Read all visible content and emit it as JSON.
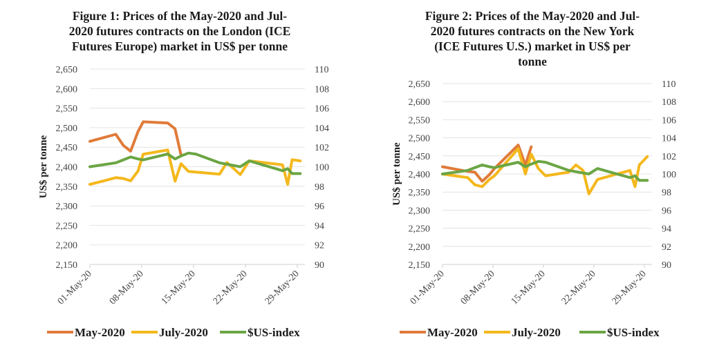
{
  "chart_data": [
    {
      "type": "line",
      "title": "Figure 1: Prices of the May-2020 and Jul-2020 futures contracts on the London (ICE Futures Europe) market in US$ per tonne",
      "title_lines": [
        "Figure 1: Prices of the May-2020 and Jul-",
        "2020 futures contracts on the London (ICE",
        "Futures Europe) market in US$ per tonne"
      ],
      "xlabel": "",
      "ylabel": "US$ per tonne",
      "y2label": "",
      "x_ticks": [
        "01-May-20",
        "08-May-20",
        "15-May-20",
        "22-May-20",
        "29-May-20"
      ],
      "x_tick_days": [
        0,
        7,
        14,
        21,
        28
      ],
      "x_range_days": [
        0,
        29
      ],
      "ylim": [
        2150,
        2650
      ],
      "y_ticks": [
        "2,150",
        "2,200",
        "2,250",
        "2,300",
        "2,350",
        "2,400",
        "2,450",
        "2,500",
        "2,550",
        "2,600",
        "2,650"
      ],
      "y2lim": [
        90,
        110
      ],
      "y2_ticks": [
        "90",
        "92",
        "94",
        "96",
        "98",
        "100",
        "102",
        "104",
        "106",
        "108",
        "110"
      ],
      "grid": true,
      "legend_position": "bottom",
      "series": [
        {
          "name": "May-2020",
          "axis": "left",
          "color": "#E07B39",
          "x": [
            0,
            3.5,
            4.5,
            5.5,
            6.5,
            7.2,
            10.5,
            11.5,
            12.3
          ],
          "values": [
            2465,
            2483,
            2455,
            2440,
            2490,
            2515,
            2512,
            2497,
            2430
          ]
        },
        {
          "name": "July-2020",
          "axis": "left",
          "color": "#F4B81C",
          "x": [
            0,
            1.7,
            3.5,
            4.5,
            5.5,
            6.5,
            7.2,
            10.5,
            11.5,
            12.3,
            13.3,
            17.5,
            18.5,
            20.3,
            21.5,
            26,
            26.7,
            27.3,
            28.4
          ],
          "values": [
            2355,
            2363,
            2372,
            2370,
            2364,
            2389,
            2432,
            2443,
            2363,
            2408,
            2388,
            2381,
            2411,
            2380,
            2415,
            2405,
            2355,
            2418,
            2415
          ]
        },
        {
          "name": "$US-index",
          "axis": "right",
          "color": "#6BA543",
          "x": [
            0,
            3.5,
            4.5,
            5.5,
            6.5,
            7.2,
            10.5,
            11.5,
            12.3,
            13.3,
            14.3,
            17.5,
            20.3,
            21.5,
            26,
            26.7,
            27.3,
            28.4
          ],
          "values": [
            100.0,
            100.4,
            100.7,
            101.0,
            100.8,
            100.7,
            101.3,
            100.8,
            101.1,
            101.4,
            101.3,
            100.4,
            100.0,
            100.6,
            99.6,
            99.8,
            99.3,
            99.3
          ]
        }
      ]
    },
    {
      "type": "line",
      "title": "Figure 2: Prices of the May-2020 and Jul-2020 futures contracts on the New York (ICE Futures U.S.) market in US$ per tonne",
      "title_lines": [
        "Figure 2: Prices of the May-2020 and Jul-",
        "2020 futures contracts on the New York",
        "(ICE Futures U.S.) market in US$ per",
        "tonne"
      ],
      "xlabel": "",
      "ylabel": "US$ per tonne",
      "y2label": "",
      "x_ticks": [
        "01-May-20",
        "08-May-20",
        "15-May-20",
        "22-May-20",
        "29-May-20"
      ],
      "x_tick_days": [
        0,
        7,
        14,
        21,
        28
      ],
      "x_range_days": [
        0,
        29
      ],
      "ylim": [
        2150,
        2650
      ],
      "y_ticks": [
        "2,150",
        "2,200",
        "2,250",
        "2,300",
        "2,350",
        "2,400",
        "2,450",
        "2,500",
        "2,550",
        "2,600",
        "2,650"
      ],
      "y2lim": [
        90,
        110
      ],
      "y2_ticks": [
        "90",
        "92",
        "94",
        "96",
        "98",
        "100",
        "102",
        "104",
        "106",
        "108",
        "110"
      ],
      "grid": true,
      "legend_position": "bottom",
      "series": [
        {
          "name": "May-2020",
          "axis": "left",
          "color": "#E07B39",
          "x": [
            0,
            3.5,
            4.5,
            5.5,
            6.5,
            7.2,
            10.5,
            11.5,
            12.3
          ],
          "values": [
            2420,
            2407,
            2405,
            2380,
            2398,
            2415,
            2480,
            2425,
            2475
          ]
        },
        {
          "name": "July-2020",
          "axis": "left",
          "color": "#F4B81C",
          "x": [
            0,
            1.7,
            3.5,
            4.5,
            5.5,
            6.5,
            7.2,
            10.5,
            11.5,
            12.3,
            13.3,
            14.3,
            17.5,
            18.5,
            19.5,
            20.3,
            21.5,
            26,
            26.7,
            27.3,
            28.4
          ],
          "values": [
            2400,
            2395,
            2390,
            2370,
            2365,
            2385,
            2395,
            2470,
            2400,
            2455,
            2415,
            2395,
            2405,
            2425,
            2410,
            2345,
            2385,
            2410,
            2365,
            2425,
            2448
          ]
        },
        {
          "name": "$US-index",
          "axis": "right",
          "color": "#6BA543",
          "x": [
            0,
            3.5,
            4.5,
            5.5,
            6.5,
            7.2,
            10.5,
            11.5,
            12.3,
            13.3,
            14.3,
            17.5,
            20.3,
            21.5,
            26,
            26.7,
            27.3,
            28.4
          ],
          "values": [
            100.0,
            100.4,
            100.7,
            101.0,
            100.8,
            100.7,
            101.3,
            100.8,
            101.1,
            101.4,
            101.3,
            100.4,
            100.0,
            100.6,
            99.6,
            99.8,
            99.3,
            99.3
          ]
        }
      ]
    }
  ]
}
